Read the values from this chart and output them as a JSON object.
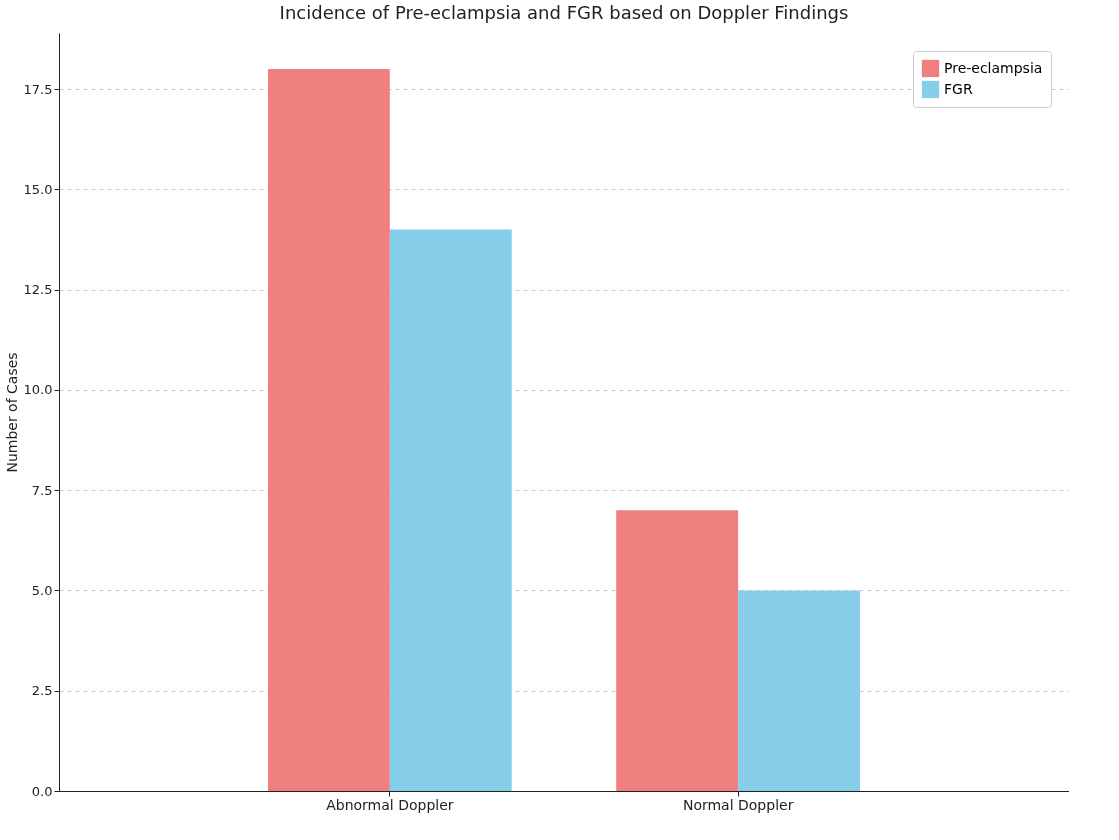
{
  "chart_data": {
    "type": "bar",
    "title": "Incidence of Pre-eclampsia and FGR based on Doppler Findings",
    "ylabel": "Number of Cases",
    "categories": [
      "Abnormal Doppler",
      "Normal Doppler"
    ],
    "series": [
      {
        "name": "Pre-eclampsia",
        "color": "#f08080",
        "values": [
          18,
          7
        ]
      },
      {
        "name": "FGR",
        "color": "#87ceeb",
        "values": [
          14,
          5
        ]
      }
    ],
    "ylim": [
      0,
      18.9
    ],
    "yticks": [
      {
        "value": 0,
        "label": "0.0"
      },
      2.5,
      {
        "value": 5,
        "label": "5.0"
      },
      7.5,
      {
        "value": 10,
        "label": "10.0"
      },
      12.5,
      {
        "value": 15,
        "label": "15.0"
      },
      17.5
    ],
    "grid": "y",
    "legend": "top right"
  }
}
